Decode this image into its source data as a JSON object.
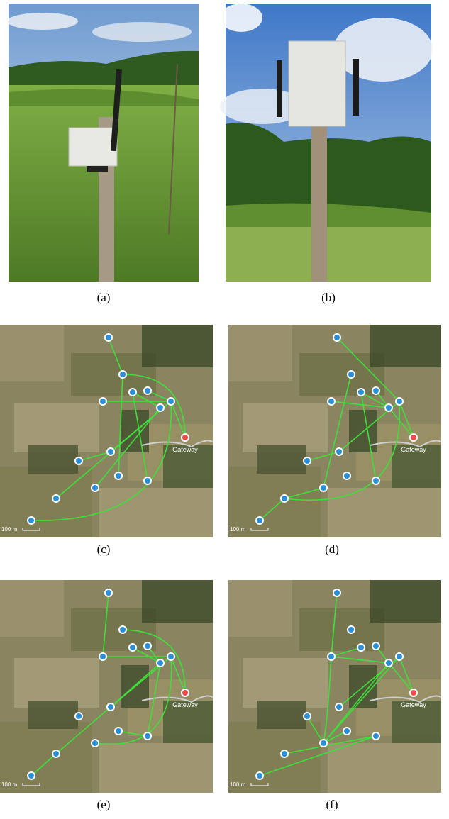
{
  "panels": [
    {
      "caption": "(a)"
    },
    {
      "caption": "(b)"
    },
    {
      "caption": "(c)",
      "gateway_label": "Gateway",
      "scale_label": "100 m"
    },
    {
      "caption": "(d)",
      "gateway_label": "Gateway",
      "scale_label": "100 m"
    },
    {
      "caption": "(e)",
      "gateway_label": "Gateway",
      "scale_label": "100 m"
    },
    {
      "caption": "(f)",
      "gateway_label": "Gateway",
      "scale_label": "100 m"
    }
  ]
}
